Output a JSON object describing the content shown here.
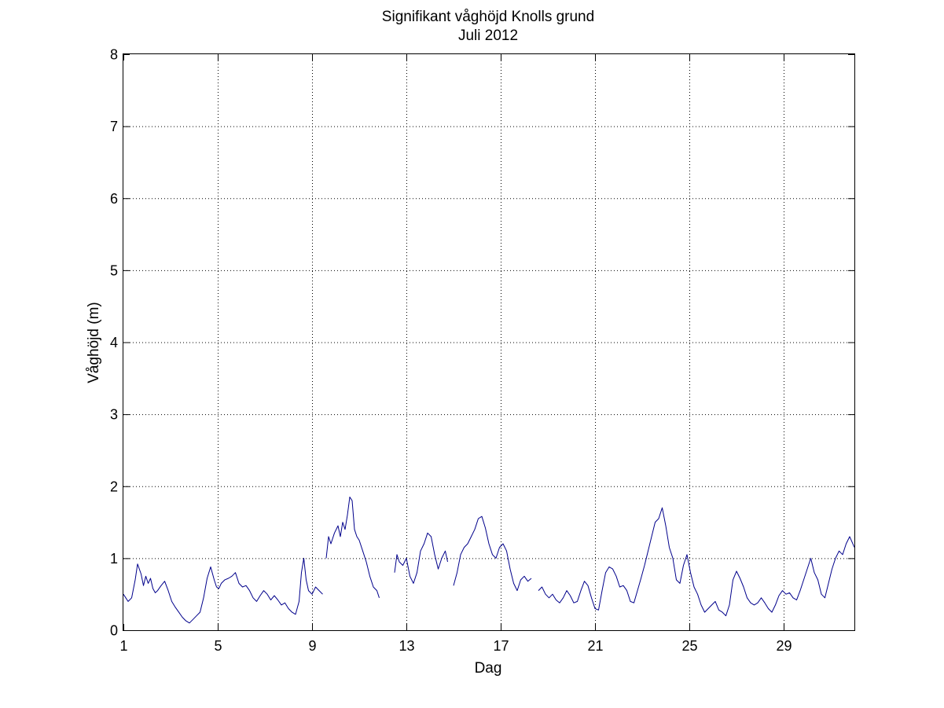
{
  "chart_data": {
    "type": "line",
    "title": "Signifikant våghöjd Knolls grund",
    "subtitle": "Juli 2012",
    "xlabel": "Dag",
    "ylabel": "Våghöjd (m)",
    "xlim": [
      1,
      32
    ],
    "ylim": [
      0,
      8
    ],
    "x_ticks": [
      1,
      5,
      9,
      13,
      17,
      21,
      25,
      29
    ],
    "y_ticks": [
      0,
      1,
      2,
      3,
      4,
      5,
      6,
      7,
      8
    ],
    "grid": true,
    "legend": "none",
    "line_color": "#00008b",
    "series": [
      {
        "segments": [
          {
            "x": [
              1.0,
              1.1,
              1.2,
              1.35,
              1.5,
              1.6,
              1.75,
              1.85,
              1.95,
              2.05,
              2.15,
              2.25,
              2.35,
              2.45,
              2.6,
              2.75,
              2.9,
              3.05,
              3.2,
              3.35,
              3.5,
              3.65,
              3.8,
              3.95,
              4.1,
              4.25,
              4.4,
              4.55,
              4.7,
              4.85,
              4.95,
              5.05,
              5.15,
              5.3,
              5.45,
              5.6,
              5.75,
              5.9,
              6.05,
              6.2,
              6.35,
              6.5,
              6.65,
              6.8,
              6.95,
              7.1,
              7.25,
              7.4,
              7.55,
              7.7,
              7.85,
              8.0,
              8.15,
              8.3,
              8.45,
              8.55,
              8.65,
              8.75,
              8.85,
              9.0,
              9.15,
              9.3,
              9.45
            ],
            "y": [
              0.5,
              0.45,
              0.4,
              0.45,
              0.7,
              0.92,
              0.78,
              0.62,
              0.75,
              0.65,
              0.72,
              0.58,
              0.52,
              0.55,
              0.62,
              0.68,
              0.55,
              0.4,
              0.32,
              0.25,
              0.18,
              0.13,
              0.1,
              0.15,
              0.2,
              0.25,
              0.45,
              0.72,
              0.88,
              0.7,
              0.6,
              0.58,
              0.65,
              0.7,
              0.72,
              0.75,
              0.8,
              0.65,
              0.6,
              0.62,
              0.55,
              0.45,
              0.4,
              0.48,
              0.55,
              0.5,
              0.42,
              0.48,
              0.42,
              0.35,
              0.38,
              0.3,
              0.25,
              0.22,
              0.4,
              0.8,
              1.0,
              0.7,
              0.55,
              0.5,
              0.6,
              0.55,
              0.5
            ]
          },
          {
            "x": [
              9.6,
              9.7,
              9.8,
              9.95,
              10.1,
              10.2,
              10.3,
              10.4,
              10.5,
              10.6,
              10.7,
              10.8,
              10.9,
              11.0,
              11.15,
              11.3,
              11.45,
              11.6,
              11.75,
              11.85
            ],
            "y": [
              1.0,
              1.3,
              1.2,
              1.35,
              1.45,
              1.3,
              1.5,
              1.4,
              1.6,
              1.85,
              1.8,
              1.4,
              1.3,
              1.25,
              1.1,
              0.95,
              0.75,
              0.6,
              0.55,
              0.45
            ]
          },
          {
            "x": [
              12.5,
              12.6,
              12.7,
              12.85,
              13.0,
              13.15,
              13.3,
              13.45,
              13.6,
              13.75,
              13.9,
              14.05,
              14.2,
              14.35,
              14.5,
              14.65,
              14.75
            ],
            "y": [
              0.8,
              1.05,
              0.95,
              0.9,
              1.0,
              0.75,
              0.65,
              0.8,
              1.1,
              1.2,
              1.35,
              1.3,
              1.05,
              0.85,
              1.0,
              1.1,
              0.95
            ]
          },
          {
            "x": [
              15.0,
              15.15,
              15.3,
              15.45,
              15.6,
              15.75,
              15.9,
              16.05,
              16.2,
              16.35,
              16.5,
              16.65,
              16.8,
              16.95,
              17.1,
              17.25,
              17.4,
              17.55,
              17.7,
              17.85,
              18.0,
              18.15,
              18.3
            ],
            "y": [
              0.62,
              0.8,
              1.05,
              1.15,
              1.2,
              1.3,
              1.4,
              1.55,
              1.58,
              1.42,
              1.2,
              1.05,
              1.0,
              1.15,
              1.2,
              1.1,
              0.85,
              0.65,
              0.55,
              0.7,
              0.75,
              0.68,
              0.72
            ]
          },
          {
            "x": [
              18.6,
              18.75,
              18.9,
              19.05,
              19.2,
              19.35,
              19.5,
              19.65,
              19.8,
              19.95,
              20.1,
              20.25,
              20.4,
              20.55,
              20.7,
              20.85,
              21.0,
              21.15,
              21.3,
              21.45,
              21.6,
              21.75,
              21.9,
              22.05,
              22.2,
              22.35,
              22.5,
              22.65,
              22.8,
              22.95,
              23.1,
              23.25,
              23.4,
              23.55,
              23.7,
              23.85,
              24.0,
              24.15,
              24.3,
              24.45,
              24.6,
              24.75,
              24.9,
              25.05,
              25.2,
              25.35,
              25.5,
              25.65,
              25.8,
              25.95,
              26.1,
              26.25,
              26.4,
              26.55,
              26.7,
              26.85,
              27.0,
              27.15,
              27.3,
              27.45,
              27.6,
              27.75,
              27.9,
              28.05,
              28.2,
              28.35,
              28.5,
              28.65,
              28.8,
              28.95,
              29.1,
              29.25,
              29.4,
              29.55,
              29.7,
              29.85,
              30.0,
              30.15,
              30.3,
              30.45,
              30.6,
              30.75,
              30.9,
              31.05,
              31.2,
              31.35,
              31.5,
              31.65,
              31.8,
              32.0
            ],
            "y": [
              0.55,
              0.6,
              0.5,
              0.45,
              0.5,
              0.42,
              0.38,
              0.45,
              0.55,
              0.48,
              0.38,
              0.4,
              0.55,
              0.68,
              0.62,
              0.45,
              0.3,
              0.28,
              0.55,
              0.8,
              0.88,
              0.85,
              0.75,
              0.6,
              0.62,
              0.55,
              0.4,
              0.38,
              0.55,
              0.72,
              0.9,
              1.1,
              1.3,
              1.5,
              1.55,
              1.7,
              1.45,
              1.15,
              1.0,
              0.7,
              0.65,
              0.9,
              1.05,
              0.8,
              0.6,
              0.5,
              0.35,
              0.25,
              0.3,
              0.35,
              0.4,
              0.28,
              0.25,
              0.2,
              0.35,
              0.7,
              0.82,
              0.72,
              0.6,
              0.45,
              0.38,
              0.35,
              0.38,
              0.45,
              0.38,
              0.3,
              0.25,
              0.35,
              0.48,
              0.55,
              0.5,
              0.52,
              0.45,
              0.42,
              0.55,
              0.7,
              0.85,
              1.0,
              0.8,
              0.7,
              0.5,
              0.45,
              0.65,
              0.85,
              1.0,
              1.1,
              1.05,
              1.2,
              1.3,
              1.15
            ]
          }
        ]
      }
    ]
  }
}
